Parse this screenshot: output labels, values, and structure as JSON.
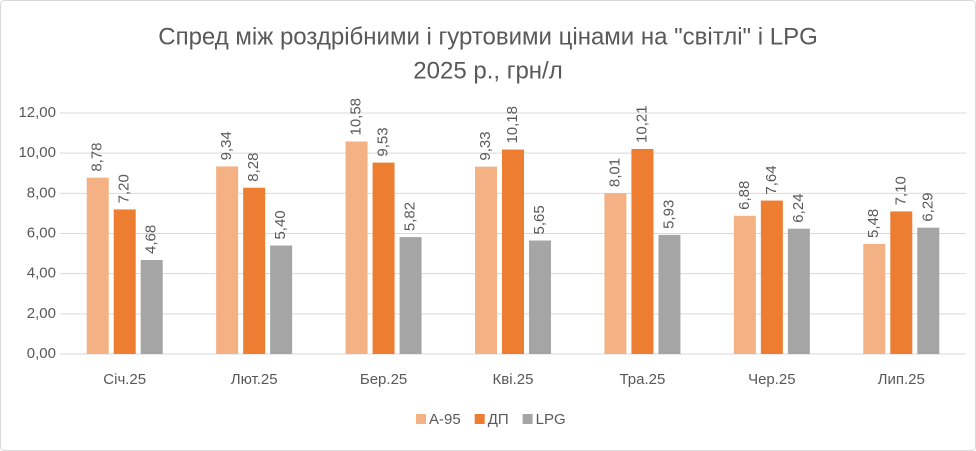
{
  "chart_data": {
    "type": "bar",
    "title": [
      "Спред між роздрібними і гуртовими цінами на \"світлі\" і LPG",
      "2025 р., грн/л"
    ],
    "categories": [
      "Січ.25",
      "Лют.25",
      "Бер.25",
      "Кві.25",
      "Тра.25",
      "Чер.25",
      "Лип.25"
    ],
    "series": [
      {
        "name": "А-95",
        "color": "#F4B183",
        "values": [
          8.78,
          9.34,
          10.58,
          9.33,
          8.01,
          6.88,
          5.48
        ],
        "value_labels": [
          "8,78",
          "9,34",
          "10,58",
          "9,33",
          "8,01",
          "6,88",
          "5,48"
        ]
      },
      {
        "name": "ДП",
        "color": "#ED7D31",
        "values": [
          7.2,
          8.28,
          9.53,
          10.18,
          10.21,
          7.64,
          7.1
        ],
        "value_labels": [
          "7,20",
          "8,28",
          "9,53",
          "10,18",
          "10,21",
          "7,64",
          "7,10"
        ]
      },
      {
        "name": "LPG",
        "color": "#A5A5A5",
        "values": [
          4.68,
          5.4,
          5.82,
          5.65,
          5.93,
          6.24,
          6.29
        ],
        "value_labels": [
          "4,68",
          "5,40",
          "5,82",
          "5,65",
          "5,93",
          "6,24",
          "6,29"
        ]
      }
    ],
    "ylim": [
      0,
      12
    ],
    "yticks": [
      {
        "value": 0,
        "label": "0,00"
      },
      {
        "value": 2,
        "label": "2,00"
      },
      {
        "value": 4,
        "label": "4,00"
      },
      {
        "value": 6,
        "label": "6,00"
      },
      {
        "value": 8,
        "label": "8,00"
      },
      {
        "value": 10,
        "label": "10,00"
      },
      {
        "value": 12,
        "label": "12,00"
      }
    ],
    "grid": true,
    "legend": "bottom"
  }
}
